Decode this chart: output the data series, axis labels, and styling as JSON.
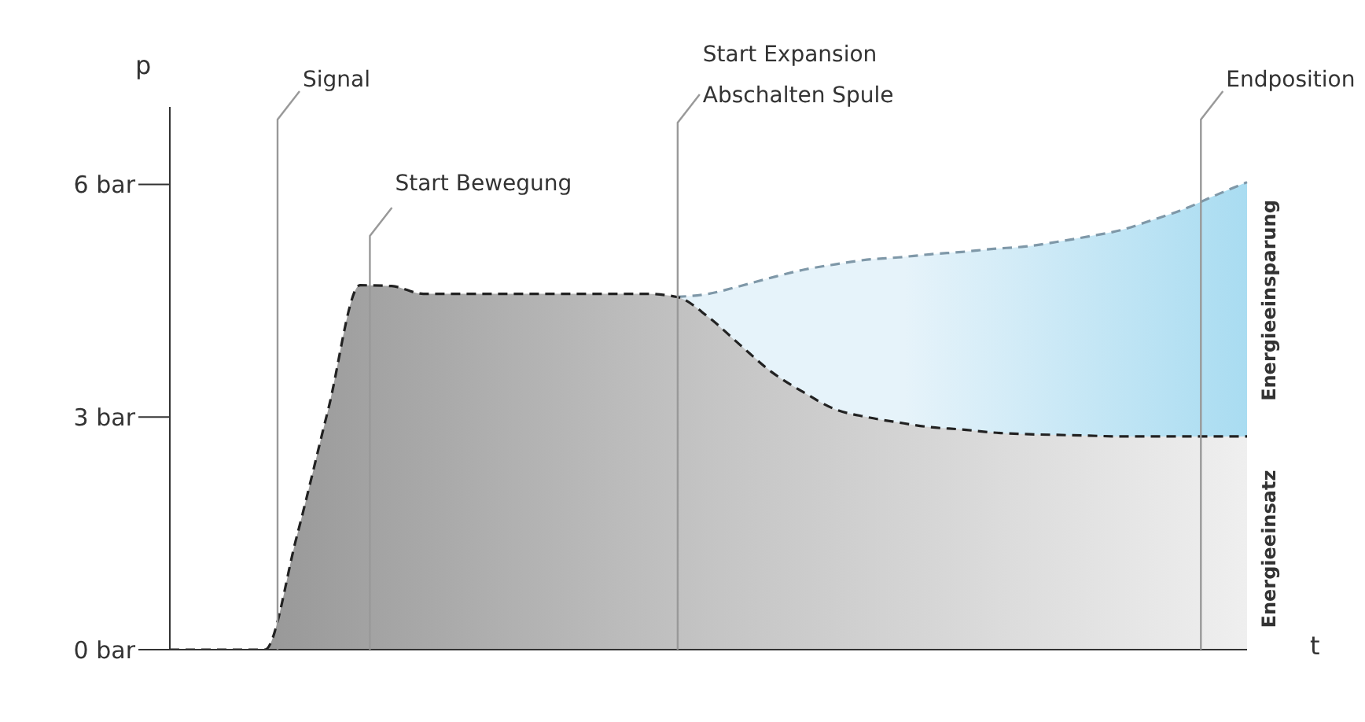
{
  "chart_data": {
    "type": "area",
    "xlabel": "t",
    "ylabel": "p",
    "categories": [
      null,
      null,
      null,
      null,
      null,
      null,
      null,
      null,
      null,
      null,
      null,
      null,
      null,
      null,
      null,
      null,
      null,
      null,
      null,
      null,
      null,
      null,
      null,
      null,
      null,
      null,
      null,
      null,
      null,
      null,
      null,
      null,
      null,
      null,
      null
    ],
    "series": [
      {
        "color": "#7f98a8",
        "line_style": "dashed",
        "values": [
          null,
          null,
          null,
          null,
          null,
          null,
          null,
          null,
          null,
          null,
          null,
          null,
          null,
          null,
          null,
          null,
          4.55,
          4.59,
          4.69,
          4.8,
          4.9,
          4.97,
          5.03,
          5.06,
          5.1,
          5.13,
          5.17,
          5.2,
          5.26,
          5.33,
          5.41,
          5.54,
          5.68,
          5.86,
          6.03
        ]
      },
      {
        "color": "#222222",
        "line_style": "dashed",
        "values": [
          0,
          0,
          0,
          0,
          1.45,
          3.1,
          4.7,
          4.69,
          4.59,
          4.59,
          4.59,
          4.59,
          4.59,
          4.59,
          4.59,
          4.59,
          4.55,
          4.29,
          3.93,
          3.58,
          3.32,
          3.1,
          3.0,
          2.93,
          2.87,
          2.84,
          2.8,
          2.78,
          2.77,
          2.76,
          2.75,
          2.75,
          2.75,
          2.75,
          2.75
        ]
      }
    ],
    "ylim": [
      0,
      7
    ],
    "yticks": [
      {
        "value": 0,
        "label": "0 bar"
      },
      {
        "value": 3,
        "label": "3 bar"
      },
      {
        "value": 6,
        "label": "6 bar"
      }
    ],
    "tick_labels": "y",
    "grid": false,
    "legend": false,
    "annotations": [
      "Signal",
      "Start Bewegung",
      "Start Expansion\nAbschalten Spule",
      "Endposition",
      "Energieeinsparung",
      "Energieeinsatz"
    ]
  }
}
